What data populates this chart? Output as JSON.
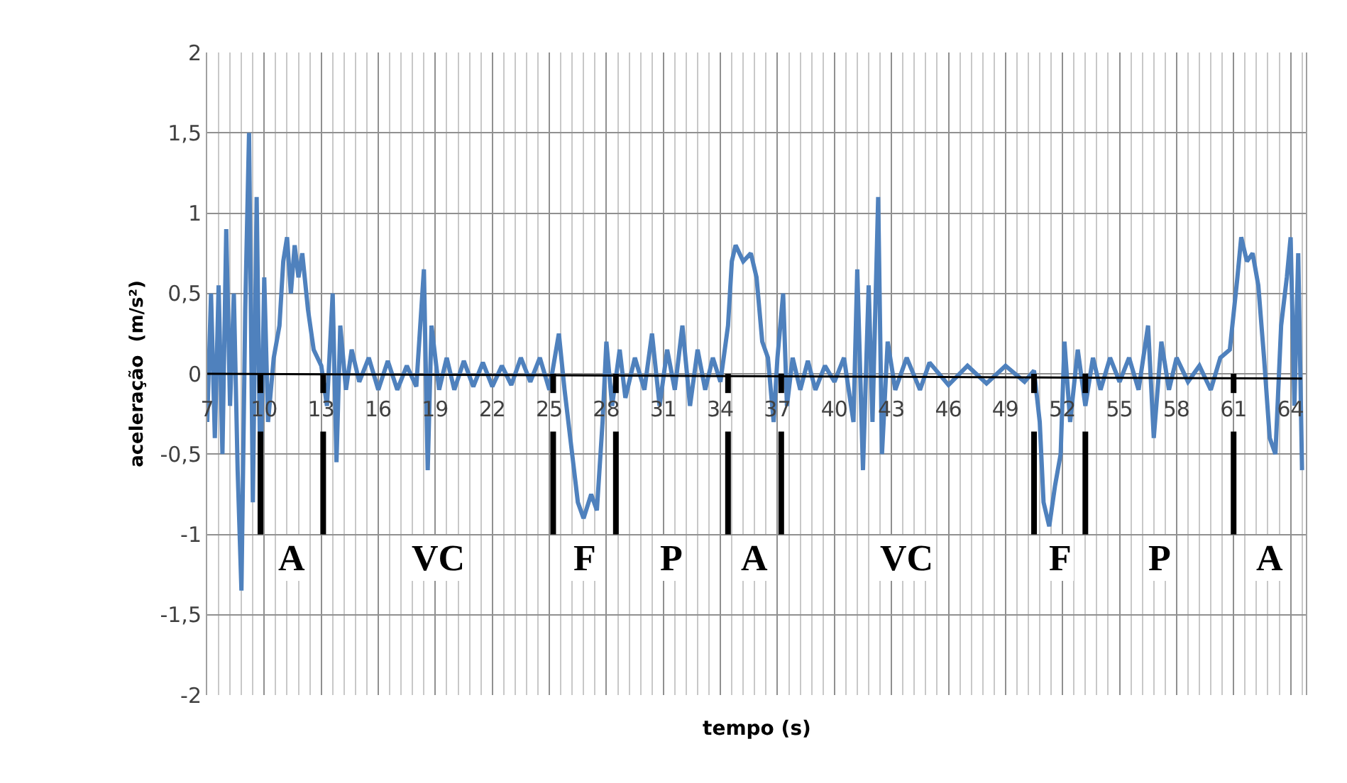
{
  "chart_data": {
    "type": "line",
    "xlabel": "tempo (s)",
    "ylabel": "aceleração  (m/s²)",
    "xlim": [
      7,
      64.8
    ],
    "xticks": [
      7,
      10,
      13,
      16,
      19,
      22,
      25,
      28,
      31,
      34,
      37,
      40,
      43,
      46,
      49,
      52,
      55,
      58,
      61,
      64
    ],
    "ylim": [
      -2,
      2
    ],
    "yticks": [
      {
        "value": -2,
        "label": "-2"
      },
      {
        "value": -1.5,
        "label": "-1,5"
      },
      {
        "value": -1,
        "label": "-1"
      },
      {
        "value": -0.5,
        "label": "-0,5"
      },
      {
        "value": 0,
        "label": "0"
      },
      {
        "value": 0.5,
        "label": "0,5"
      },
      {
        "value": 1,
        "label": "1"
      },
      {
        "value": 1.5,
        "label": "1,5"
      },
      {
        "value": 2,
        "label": "2"
      }
    ],
    "grid": true,
    "marker": "none",
    "line_style": "solid",
    "series": [
      {
        "color": "#4f81bd",
        "x": [
          7.0,
          7.2,
          7.4,
          7.6,
          7.8,
          8.0,
          8.2,
          8.4,
          8.6,
          8.8,
          9.0,
          9.2,
          9.4,
          9.6,
          9.8,
          10.0,
          10.2,
          10.5,
          10.8,
          11.0,
          11.2,
          11.4,
          11.6,
          11.8,
          12.0,
          12.3,
          12.6,
          13.0,
          13.3,
          13.6,
          13.8,
          14.0,
          14.3,
          14.6,
          15.0,
          15.5,
          16,
          16.5,
          17,
          17.5,
          18,
          18.4,
          18.6,
          18.8,
          19.2,
          19.6,
          20,
          20.5,
          21,
          21.5,
          22,
          22.5,
          23,
          23.5,
          24,
          24.5,
          25,
          25.5,
          25.8,
          26.2,
          26.5,
          26.8,
          27.2,
          27.5,
          27.8,
          28,
          28.3,
          28.7,
          29,
          29.5,
          30,
          30.4,
          30.8,
          31.2,
          31.6,
          32,
          32.4,
          32.8,
          33.2,
          33.6,
          34,
          34.4,
          34.6,
          34.8,
          35.2,
          35.6,
          35.9,
          36.2,
          36.5,
          36.8,
          37.0,
          37.3,
          37.5,
          37.8,
          38.2,
          38.6,
          39,
          39.5,
          40,
          40.5,
          41,
          41.2,
          41.5,
          41.8,
          42.0,
          42.3,
          42.5,
          42.8,
          43.2,
          43.8,
          44.5,
          45,
          46,
          47,
          48,
          49,
          50,
          50.5,
          50.8,
          51,
          51.3,
          51.6,
          51.9,
          52.1,
          52.4,
          52.8,
          53.2,
          53.6,
          54,
          54.5,
          55,
          55.5,
          56,
          56.5,
          56.8,
          57.2,
          57.6,
          58,
          58.6,
          59.2,
          59.8,
          60.3,
          60.8,
          61.2,
          61.4,
          61.7,
          62.0,
          62.3,
          62.6,
          62.9,
          63.2,
          63.5,
          63.8,
          64.0,
          64.2,
          64.4,
          64.6
        ],
        "values": [
          -0.3,
          0.5,
          -0.4,
          0.55,
          -0.5,
          0.9,
          -0.2,
          0.5,
          -0.6,
          -1.35,
          0.4,
          1.5,
          -0.8,
          1.1,
          -0.7,
          0.6,
          -0.3,
          0.1,
          0.3,
          0.7,
          0.85,
          0.5,
          0.8,
          0.6,
          0.75,
          0.4,
          0.15,
          0.05,
          -0.2,
          0.5,
          -0.55,
          0.3,
          -0.1,
          0.15,
          -0.05,
          0.1,
          -0.1,
          0.08,
          -0.1,
          0.05,
          -0.08,
          0.65,
          -0.6,
          0.3,
          -0.1,
          0.1,
          -0.1,
          0.08,
          -0.08,
          0.07,
          -0.08,
          0.05,
          -0.07,
          0.1,
          -0.05,
          0.1,
          -0.1,
          0.25,
          -0.1,
          -0.5,
          -0.8,
          -0.9,
          -0.75,
          -0.85,
          -0.3,
          0.2,
          -0.2,
          0.15,
          -0.15,
          0.1,
          -0.1,
          0.25,
          -0.2,
          0.15,
          -0.1,
          0.3,
          -0.2,
          0.15,
          -0.1,
          0.1,
          -0.05,
          0.3,
          0.7,
          0.8,
          0.7,
          0.75,
          0.6,
          0.2,
          0.1,
          -0.3,
          0.1,
          0.5,
          -0.2,
          0.1,
          -0.1,
          0.08,
          -0.1,
          0.05,
          -0.05,
          0.1,
          -0.3,
          0.65,
          -0.6,
          0.55,
          -0.3,
          1.1,
          -0.5,
          0.2,
          -0.1,
          0.1,
          -0.1,
          0.07,
          -0.07,
          0.05,
          -0.06,
          0.05,
          -0.05,
          0.02,
          -0.3,
          -0.8,
          -0.95,
          -0.7,
          -0.5,
          0.2,
          -0.3,
          0.15,
          -0.2,
          0.1,
          -0.1,
          0.1,
          -0.05,
          0.1,
          -0.1,
          0.3,
          -0.4,
          0.2,
          -0.1,
          0.1,
          -0.05,
          0.05,
          -0.1,
          0.1,
          0.15,
          0.6,
          0.85,
          0.7,
          0.75,
          0.55,
          0.1,
          -0.4,
          -0.5,
          0.3,
          0.6,
          0.85,
          -0.2,
          0.75,
          -0.6
        ]
      },
      {
        "color": "#000000",
        "x": [
          7,
          64.6
        ],
        "values": [
          0,
          -0.03
        ]
      }
    ],
    "ref_lines": [
      {
        "axis": "x",
        "value": 9.8,
        "color": "#000000"
      },
      {
        "axis": "x",
        "value": 13.1,
        "color": "#000000"
      },
      {
        "axis": "x",
        "value": 25.2,
        "color": "#000000"
      },
      {
        "axis": "x",
        "value": 28.5,
        "color": "#000000"
      },
      {
        "axis": "x",
        "value": 34.4,
        "color": "#000000"
      },
      {
        "axis": "x",
        "value": 37.2,
        "color": "#000000"
      },
      {
        "axis": "x",
        "value": 50.5,
        "color": "#000000"
      },
      {
        "axis": "x",
        "value": 53.2,
        "color": "#000000"
      },
      {
        "axis": "x",
        "value": 61.0,
        "color": "#000000"
      }
    ],
    "annotations": [
      "A",
      "VC",
      "F",
      "P",
      "A",
      "VC",
      "F",
      "P",
      "A"
    ]
  }
}
